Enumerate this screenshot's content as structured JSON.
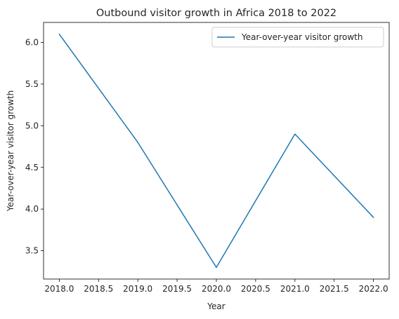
{
  "chart_data": {
    "type": "line",
    "title": "Outbound visitor growth in Africa 2018 to 2022",
    "xlabel": "Year",
    "ylabel": "Year-over-year visitor growth",
    "x": [
      2018,
      2019,
      2020,
      2021,
      2022
    ],
    "series": [
      {
        "name": "Year-over-year visitor growth",
        "values": [
          6.1,
          4.8,
          3.3,
          4.9,
          3.9
        ],
        "color": "#1f77b4"
      }
    ],
    "xticks": [
      "2018.0",
      "2018.5",
      "2019.0",
      "2019.5",
      "2020.0",
      "2020.5",
      "2021.0",
      "2021.5",
      "2022.0"
    ],
    "yticks": [
      "3.5",
      "4.0",
      "4.5",
      "5.0",
      "5.5",
      "6.0"
    ],
    "xlim": [
      2017.8,
      2022.2
    ],
    "ylim": [
      3.16,
      6.24
    ],
    "grid": false,
    "legend_position": "top-right"
  }
}
